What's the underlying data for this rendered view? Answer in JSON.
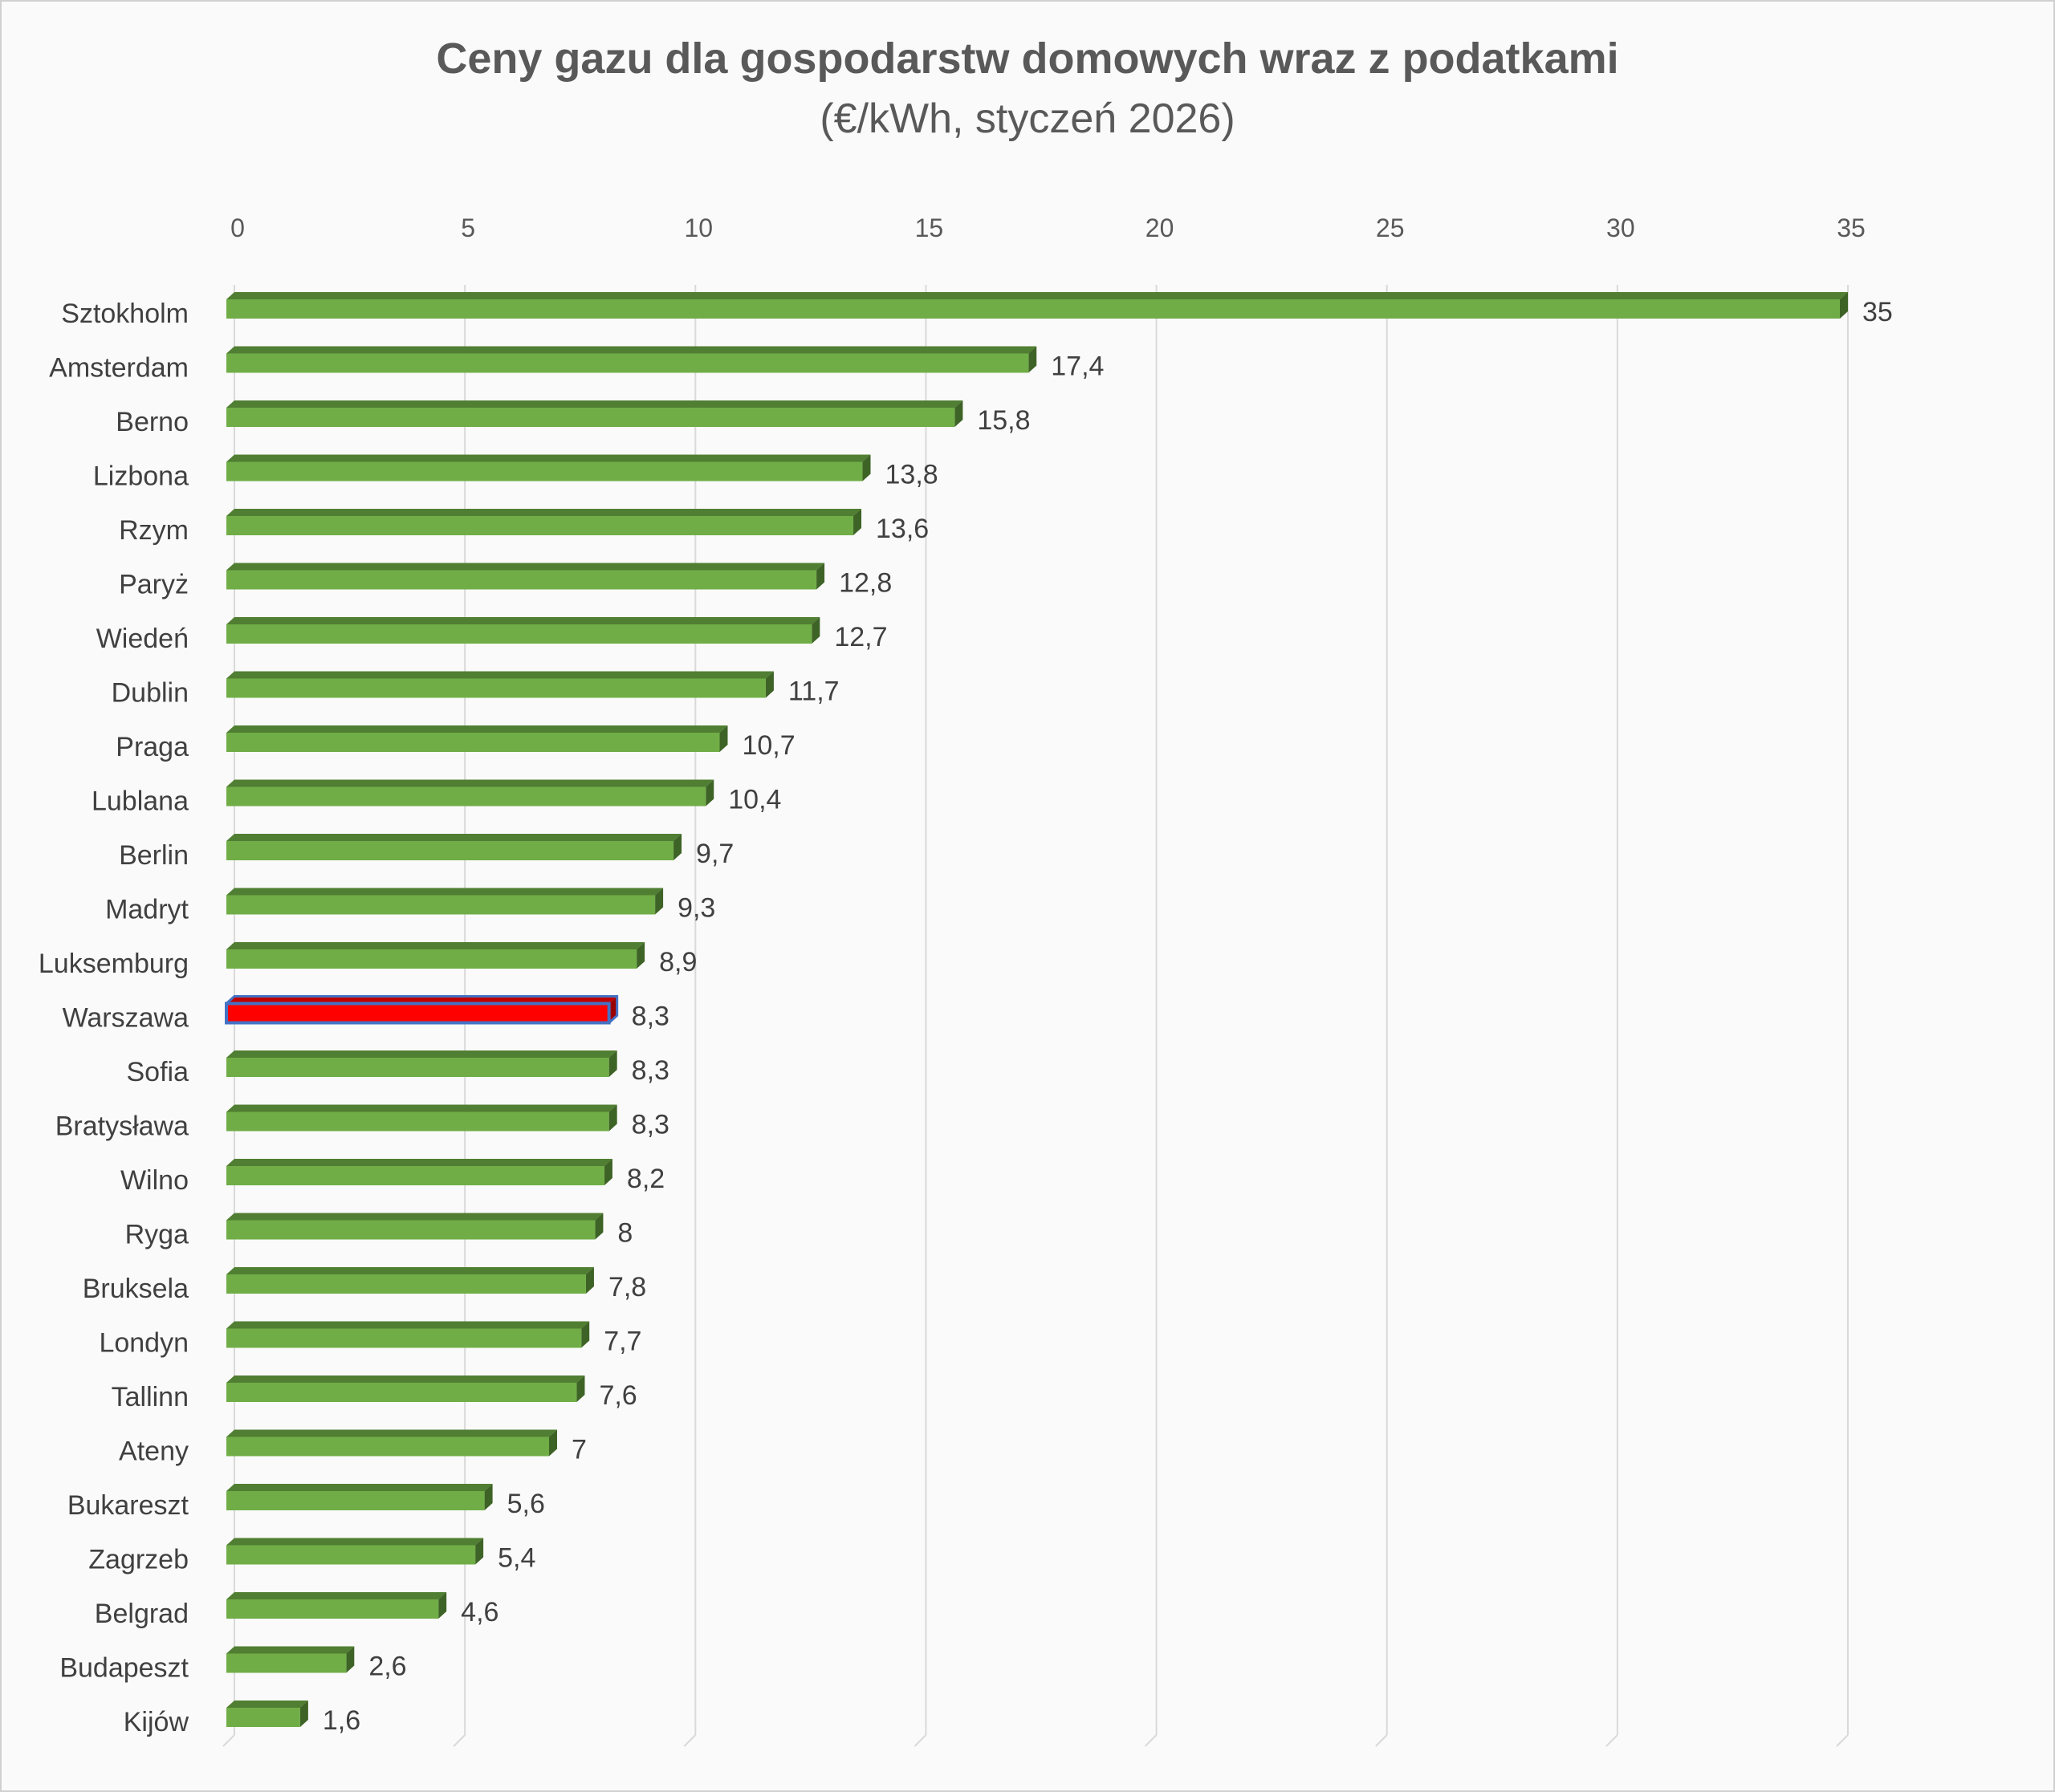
{
  "chart_data": {
    "type": "bar",
    "orientation": "horizontal",
    "title": "Ceny gazu dla gospodarstw domowych wraz z podatkami",
    "subtitle": "(€/kWh, styczeń 2026)",
    "xlabel": "",
    "ylabel": "",
    "xlim": [
      0,
      35
    ],
    "ticks": [
      0,
      5,
      10,
      15,
      20,
      25,
      30,
      35
    ],
    "grid": true,
    "categories": [
      "Sztokholm",
      "Amsterdam",
      "Berno",
      "Lizbona",
      "Rzym",
      "Paryż",
      "Wiedeń",
      "Dublin",
      "Praga",
      "Lublana",
      "Berlin",
      "Madryt",
      "Luksemburg",
      "Warszawa",
      "Sofia",
      "Bratysława",
      "Wilno",
      "Ryga",
      "Bruksela",
      "Londyn",
      "Tallinn",
      "Ateny",
      "Bukareszt",
      "Zagrzeb",
      "Belgrad",
      "Budapeszt",
      "Kijów"
    ],
    "values": [
      35,
      17.4,
      15.8,
      13.8,
      13.6,
      12.8,
      12.7,
      11.7,
      10.7,
      10.4,
      9.7,
      9.3,
      8.9,
      8.3,
      8.3,
      8.3,
      8.2,
      8,
      7.8,
      7.7,
      7.6,
      7,
      5.6,
      5.4,
      4.6,
      2.6,
      1.6
    ],
    "value_labels": [
      "35",
      "17,4",
      "15,8",
      "13,8",
      "13,6",
      "12,8",
      "12,7",
      "11,7",
      "10,7",
      "10,4",
      "9,7",
      "9,3",
      "8,9",
      "8,3",
      "8,3",
      "8,3",
      "8,2",
      "8",
      "7,8",
      "7,7",
      "7,6",
      "7",
      "5,6",
      "5,4",
      "4,6",
      "2,6",
      "1,6"
    ],
    "highlight": "Warszawa",
    "colors": {
      "bar_front": "#70ad47",
      "bar_top": "#507e32",
      "bar_side": "#3e6326",
      "highlight_front": "#ff0000",
      "highlight_top": "#c00000",
      "highlight_side": "#9b0000",
      "highlight_outline": "#4472c4",
      "grid": "#d9d9d9"
    }
  }
}
